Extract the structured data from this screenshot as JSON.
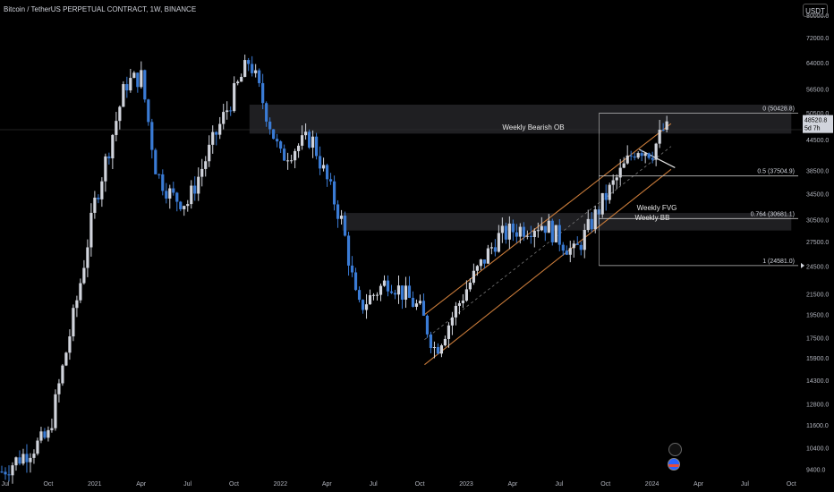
{
  "header": {
    "title": "Bitcoin / TetherUS PERPETUAL CONTRACT, 1W, BINANCE",
    "currency_button": "USDT"
  },
  "price_axis": {
    "ticks": [
      "80000.0",
      "72000.0",
      "64000.0",
      "56500.0",
      "50500.0",
      "44500.0",
      "38500.0",
      "34500.0",
      "30500.0",
      "27500.0",
      "24500.0",
      "21500.0",
      "19500.0",
      "17500.0",
      "15900.0",
      "14300.0",
      "12800.0",
      "11600.0",
      "10400.0",
      "9400.0"
    ],
    "current_price": "48520.8",
    "countdown": "5d 7h"
  },
  "time_axis": {
    "labels": [
      "Jul",
      "Oct",
      "2021",
      "Apr",
      "Jul",
      "Oct",
      "2022",
      "Apr",
      "Jul",
      "Oct",
      "2023",
      "Apr",
      "Jul",
      "Oct",
      "2024",
      "Apr",
      "Jul",
      "Oct"
    ]
  },
  "annotations": {
    "weekly_bearish_ob": "Weekly Bearish OB",
    "weekly_fvg": "Weekly FVG",
    "weekly_bb": "Weekly BB"
  },
  "fib_levels": [
    {
      "label": "0 (50428.8)",
      "price": 50428.8
    },
    {
      "label": "0.5 (37504.9)",
      "price": 37504.9
    },
    {
      "label": "0.764 (30681.1)",
      "price": 30681.1
    },
    {
      "label": "1 (24581.0)",
      "price": 24581.0
    }
  ],
  "colors": {
    "background": "#000000",
    "bull_candle": "#d1d4dc",
    "bear_candle": "#3a7bd5",
    "channel": "#c97b3a",
    "zone": "#2a2a2e"
  },
  "chart_data": {
    "type": "candlestick",
    "symbol": "BTCUSDT.P",
    "interval": "1W",
    "y_scale": "log",
    "ylim": [
      9000,
      86000
    ],
    "x_range": [
      "2020-07",
      "2024-10"
    ],
    "series_close_anchors": [
      {
        "date": "2020-07",
        "price": 9300
      },
      {
        "date": "2020-10",
        "price": 11000
      },
      {
        "date": "2020-11",
        "price": 15500
      },
      {
        "date": "2020-12",
        "price": 22000
      },
      {
        "date": "2021-01",
        "price": 33000
      },
      {
        "date": "2021-03",
        "price": 58000
      },
      {
        "date": "2021-04",
        "price": 60000
      },
      {
        "date": "2021-05",
        "price": 38000
      },
      {
        "date": "2021-06",
        "price": 34000
      },
      {
        "date": "2021-07",
        "price": 33000
      },
      {
        "date": "2021-09",
        "price": 47000
      },
      {
        "date": "2021-11",
        "price": 65000
      },
      {
        "date": "2022-01",
        "price": 41000
      },
      {
        "date": "2022-03",
        "price": 45000
      },
      {
        "date": "2022-05",
        "price": 30000
      },
      {
        "date": "2022-06",
        "price": 20000
      },
      {
        "date": "2022-08",
        "price": 23000
      },
      {
        "date": "2022-10",
        "price": 20000
      },
      {
        "date": "2022-11",
        "price": 16500
      },
      {
        "date": "2023-01",
        "price": 22000
      },
      {
        "date": "2023-03",
        "price": 28000
      },
      {
        "date": "2023-04",
        "price": 29000
      },
      {
        "date": "2023-06",
        "price": 30000
      },
      {
        "date": "2023-08",
        "price": 26000
      },
      {
        "date": "2023-10",
        "price": 34000
      },
      {
        "date": "2023-12",
        "price": 43000
      },
      {
        "date": "2024-01",
        "price": 42000
      },
      {
        "date": "2024-02",
        "price": 48520.8
      }
    ],
    "zones": [
      {
        "name": "Weekly Bearish OB",
        "low": 45800,
        "high": 52500,
        "from": "2021-11",
        "to": "2024-10"
      },
      {
        "name": "Weekly FVG",
        "low": 29000,
        "high": 31500,
        "from": "2022-05",
        "to": "2024-10"
      }
    ]
  }
}
